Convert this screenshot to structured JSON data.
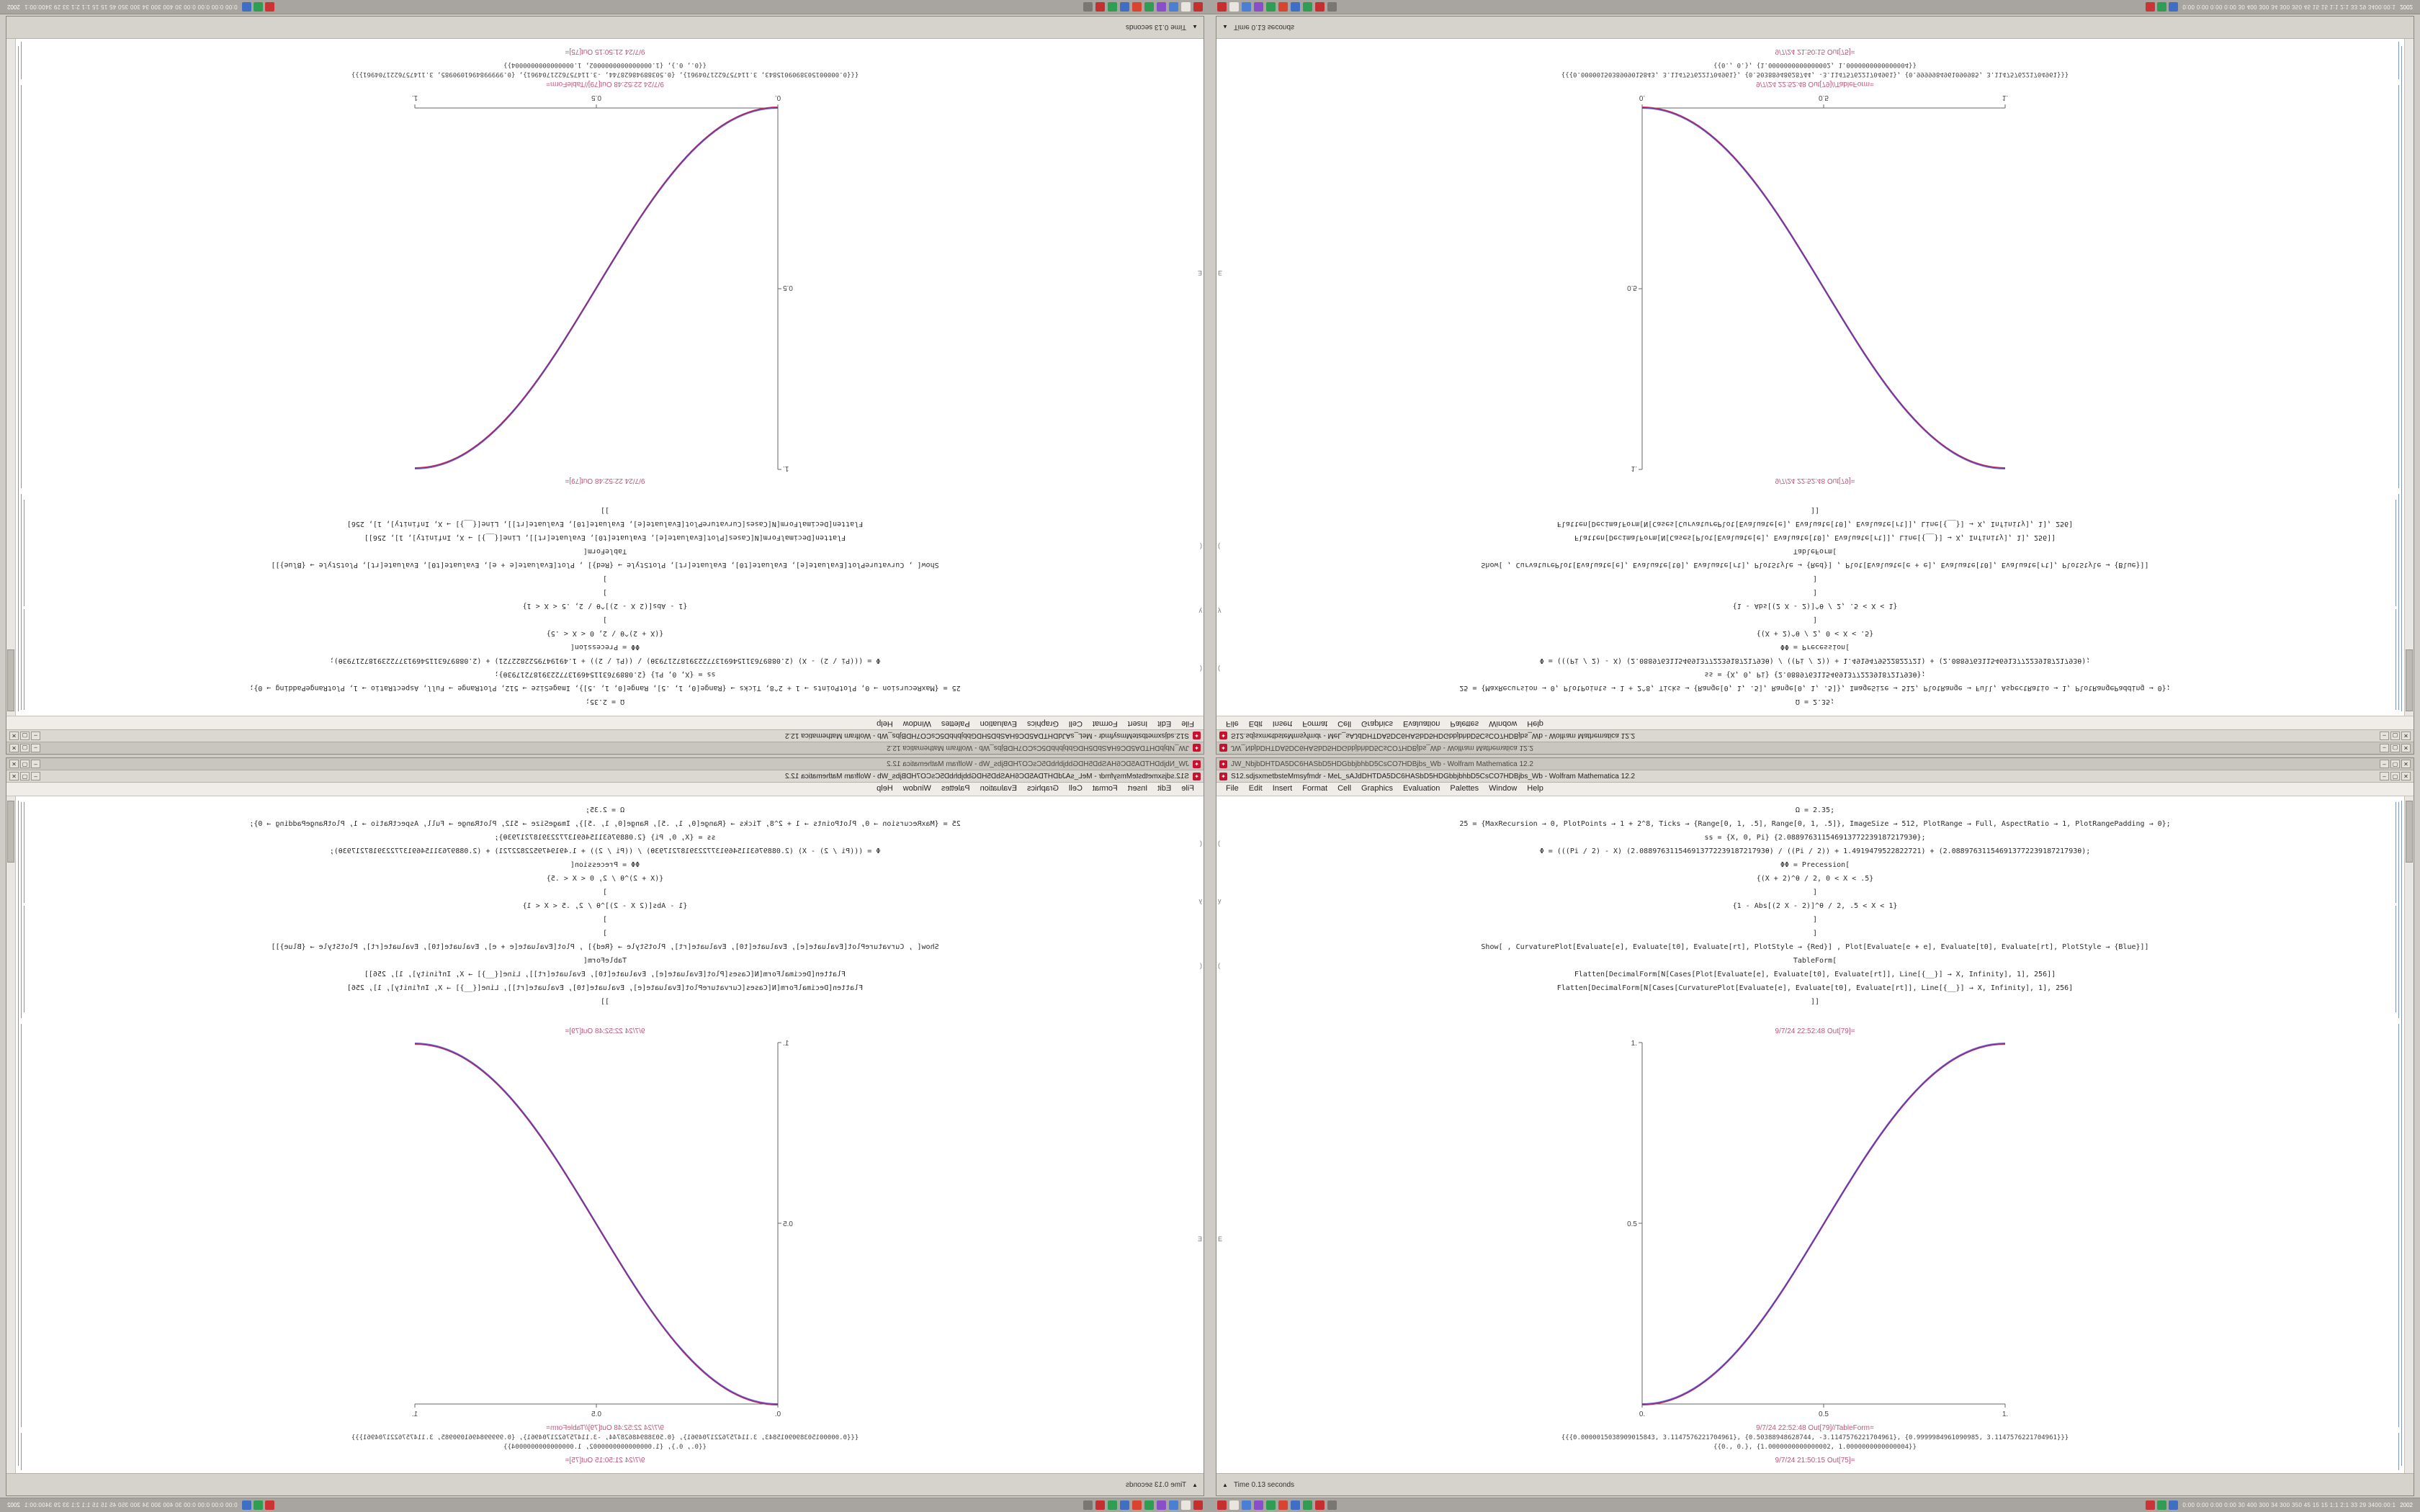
{
  "window": {
    "back_title": "JW_NbjbDHTDA5DC6HASbD5HDGbbjbhbD5CsCO7HDBjbs_Wb - Wolfram Mathematica 12.2",
    "front_title": "S12.sdjsxmetbsteMmsyfmdr - MeL_sAJdDHTDA5DC6HASbD5HDGbbjbhbD5CsCO7HDBjbs_Wb - Wolfram Mathematica 12.2",
    "controls": {
      "minimize": "–",
      "maximize": "▢",
      "close": "✕"
    },
    "menu": [
      "File",
      "Edit",
      "Insert",
      "Format",
      "Cell",
      "Graphics",
      "Evaluation",
      "Palettes",
      "Window",
      "Help"
    ],
    "status": "Time 0.13 seconds",
    "status_arrow": "▲"
  },
  "notebook": {
    "code_lines": [
      "Ω = 2.35;",
      "25 = {MaxRecursion → 0, PlotPoints → 1 + 2^8, Ticks → {Range[0, 1, .5], Range[0, 1, .5]}, ImageSize → 512, PlotRange → Full, AspectRatio → 1, PlotRangePadding → 0};",
      "ss = {X, 0, Pi} {2.08897631154691377223918721793θ};",
      "Φ = (((Pi / 2) - X) (2.08897631154691377223918721793θ) / ((Pi / 2)) + 1.4919479522822721) + (2.08897631154691377223918721793θ);",
      "ΦΦ = Precession[",
      "{(X + 2)^θ / 2, 0 < X < .5}",
      "]",
      "{1 - Abs[(2 X - 2)]^θ / 2, .5 < X < 1}",
      "]",
      "]",
      "Show[ , CurvaturePlot[Evaluate[e], Evaluate[t0], Evaluate[rt], PlotStyle → {Red}] , Plot[Evaluate[e + e], Evaluate[t0], Evaluate[rt], PlotStyle → {Blue}]]",
      "TableForm[",
      "Flatten[DecimalForm[N[Cases[Plot[Evaluate[e], Evaluate[t0], Evaluate[rt]], Line[{__}] → X, Infinity], 1], 256]]",
      "Flatten[DecimalForm[N[Cases[CurvaturePlot[Evaluate[e], Evaluate[t0], Evaluate[rt]], Line[{__}] → X, Infinity], 1], 256]",
      "]]"
    ],
    "label_above_plot": "9/7/24 22:52:48 Out[79]=",
    "label_below_plot": "9/7/24 22:52:48 Out[79]//TableForm=",
    "output_lines": [
      "{{{0.0000015038909015843, 3.1147576221704961}, {0.50388948628744, -3.1147576221704961}, {0.9999984961090985, 3.1147576221704961}}}",
      "{{0., 0.}, {1.0000000000000002, 1.0000000000000004}}"
    ],
    "final_label": "9/7/24 21:50:15 Out[75]=",
    "margin_marks": [
      "(",
      "y",
      "(",
      "E"
    ]
  },
  "chart_data": {
    "type": "line",
    "title": "",
    "xlabel": "",
    "ylabel": "",
    "xlim": [
      0,
      1
    ],
    "ylim": [
      0,
      1
    ],
    "grid": false,
    "legend": "none",
    "x": [
      0,
      0.1,
      0.2,
      0.3,
      0.4,
      0.5,
      0.6,
      0.7,
      0.8,
      0.9,
      1.0
    ],
    "series": [
      {
        "name": "CurvaturePlot (Red)",
        "color": "#cc2f4a",
        "values": [
          0,
          0.028,
          0.104,
          0.216,
          0.352,
          0.5,
          0.648,
          0.784,
          0.896,
          0.972,
          1
        ]
      },
      {
        "name": "Plot (Blue)",
        "color": "#4438c8",
        "values": [
          0,
          0.028,
          0.104,
          0.216,
          0.352,
          0.5,
          0.648,
          0.784,
          0.896,
          0.972,
          1
        ]
      }
    ],
    "x_tick_labels": [
      "0.",
      "0.5",
      "1."
    ],
    "y_tick_labels": [
      "0.5",
      "1."
    ],
    "appearance": "overlapping red and blue smoothstep curves rendering as a magenta S-curve; same plot shown in all four mirrored/rotated desktop copies"
  },
  "plot_ticks": {
    "x0": "0.",
    "x05": "0.5",
    "x1": "1.",
    "y05": "0.5",
    "y1": "1."
  },
  "taskbar": {
    "icons": [
      {
        "name": "taskbar-app-icon-1",
        "color": "#c62f2f"
      },
      {
        "name": "taskbar-app-icon-2",
        "color": "#e8e4de"
      },
      {
        "name": "taskbar-app-icon-3",
        "color": "#4a7fd4"
      },
      {
        "name": "taskbar-app-icon-4",
        "color": "#8a4fc8"
      },
      {
        "name": "taskbar-app-icon-5",
        "color": "#2f9e52"
      },
      {
        "name": "taskbar-app-icon-6",
        "color": "#d8442f"
      },
      {
        "name": "taskbar-app-icon-7",
        "color": "#3f6fc4"
      },
      {
        "name": "taskbar-app-icon-8",
        "color": "#2f9e52"
      },
      {
        "name": "taskbar-app-icon-9",
        "color": "#c62f2f"
      },
      {
        "name": "taskbar-app-icon-10",
        "color": "#7a7772"
      }
    ],
    "tray_icons": [
      {
        "name": "tray-icon-red",
        "color": "#cc3333"
      },
      {
        "name": "tray-icon-green",
        "color": "#2f9e52"
      },
      {
        "name": "tray-icon-blue",
        "color": "#3f6fc4"
      }
    ],
    "stats": "0:00 0:00 0:00 0:00  30 400 300 34 300 350 45 15 15  1:1 2:1 33 29  3400:00:1",
    "clock": "2002"
  },
  "icon_glyphs": {
    "spikey": "✦"
  }
}
